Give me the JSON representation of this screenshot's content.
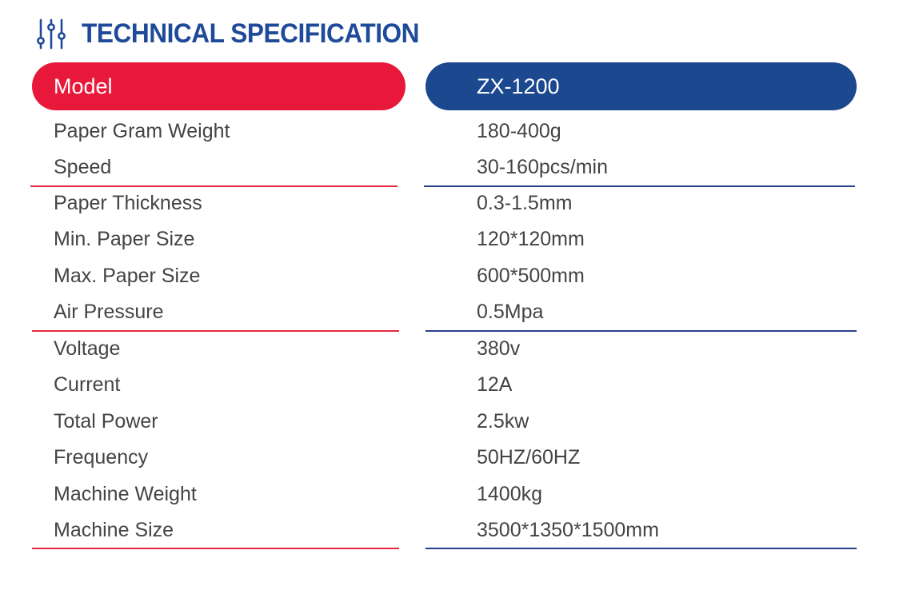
{
  "header": {
    "title": "TECHNICAL SPECIFICATION",
    "icon": "sliders-icon",
    "accent_color": "#1f4a9a"
  },
  "table": {
    "label_header": "Model",
    "value_header": "ZX-1200",
    "label_color": "#e8183a",
    "value_color": "#1c4890",
    "rows": [
      {
        "label": "Paper Gram Weight",
        "value": "180-400g"
      },
      {
        "label": "Speed",
        "value": "30-160pcs/min"
      },
      {
        "label": "Paper Thickness",
        "value": "0.3-1.5mm"
      },
      {
        "label": "Min. Paper Size",
        "value": "120*120mm"
      },
      {
        "label": "Max. Paper Size",
        "value": "600*500mm"
      },
      {
        "label": "Air Pressure",
        "value": "0.5Mpa"
      },
      {
        "label": "Voltage",
        "value": "380v"
      },
      {
        "label": "Current",
        "value": "12A"
      },
      {
        "label": "Total Power",
        "value": "2.5kw"
      },
      {
        "label": "Frequency",
        "value": "50HZ/60HZ"
      },
      {
        "label": "Machine Weight",
        "value": "1400kg"
      },
      {
        "label": "Machine Size",
        "value": "3500*1350*1500mm"
      }
    ]
  }
}
